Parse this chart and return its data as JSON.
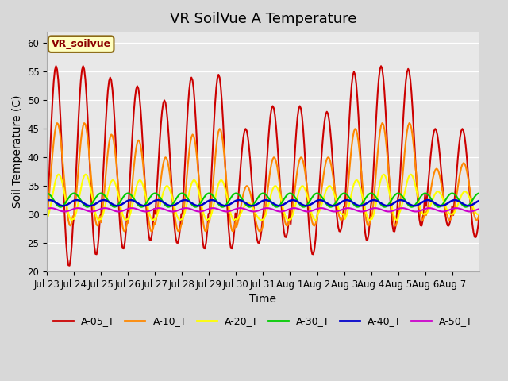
{
  "title": "VR SoilVue A Temperature",
  "xlabel": "Time",
  "ylabel": "Soil Temperature (C)",
  "ylim": [
    20,
    62
  ],
  "yticks": [
    20,
    25,
    30,
    35,
    40,
    45,
    50,
    55,
    60
  ],
  "background_color": "#e8e8e8",
  "watermark_text": "VR_soilvue",
  "legend_labels": [
    "A-05_T",
    "A-10_T",
    "A-20_T",
    "A-30_T",
    "A-40_T",
    "A-50_T"
  ],
  "line_colors": [
    "#cc0000",
    "#ff8800",
    "#ffff00",
    "#00cc00",
    "#0000cc",
    "#cc00cc"
  ],
  "line_widths": [
    1.5,
    1.5,
    1.5,
    1.5,
    1.8,
    1.5
  ],
  "xtick_labels": [
    "Jul 23",
    "Jul 24",
    "Jul 25",
    "Jul 26",
    "Jul 27",
    "Jul 28",
    "Jul 29",
    "Jul 30",
    "Jul 31",
    "Aug 1",
    "Aug 2",
    "Aug 3",
    "Aug 4",
    "Aug 5",
    "Aug 6",
    "Aug 7"
  ],
  "n_days": 16,
  "pts_per_day": 24,
  "A05_peaks": [
    56,
    56,
    54,
    52.5,
    50,
    54,
    54.5,
    45,
    49,
    49,
    48,
    55,
    56,
    55.5,
    45,
    45
  ],
  "A05_troughs": [
    21,
    23,
    24,
    25.5,
    25,
    24,
    24,
    25,
    26,
    23,
    27,
    25.5,
    27,
    28,
    28,
    26
  ],
  "A10_peaks": [
    46,
    46,
    44,
    43,
    40,
    44,
    45,
    35,
    40,
    40,
    40,
    45,
    46,
    46,
    38,
    39
  ],
  "A10_troughs": [
    28,
    28,
    27,
    27,
    27,
    27,
    27,
    27,
    28,
    28,
    29,
    28,
    28,
    29,
    29,
    29
  ],
  "A20_peaks": [
    37,
    37,
    36,
    36,
    35,
    36,
    36,
    32,
    35,
    35,
    35,
    36,
    37,
    37,
    34,
    34
  ],
  "A20_troughs": [
    29,
    29,
    29,
    29,
    29,
    29,
    29,
    29,
    29,
    29,
    30,
    29,
    29,
    30,
    30,
    30
  ],
  "A30_base": 32.5,
  "A30_amp": 1.2,
  "A40_base": 32.0,
  "A40_amp": 0.5,
  "A50_base": 30.8,
  "A50_amp": 0.3,
  "title_fontsize": 13,
  "axis_fontsize": 10,
  "tick_fontsize": 8.5
}
